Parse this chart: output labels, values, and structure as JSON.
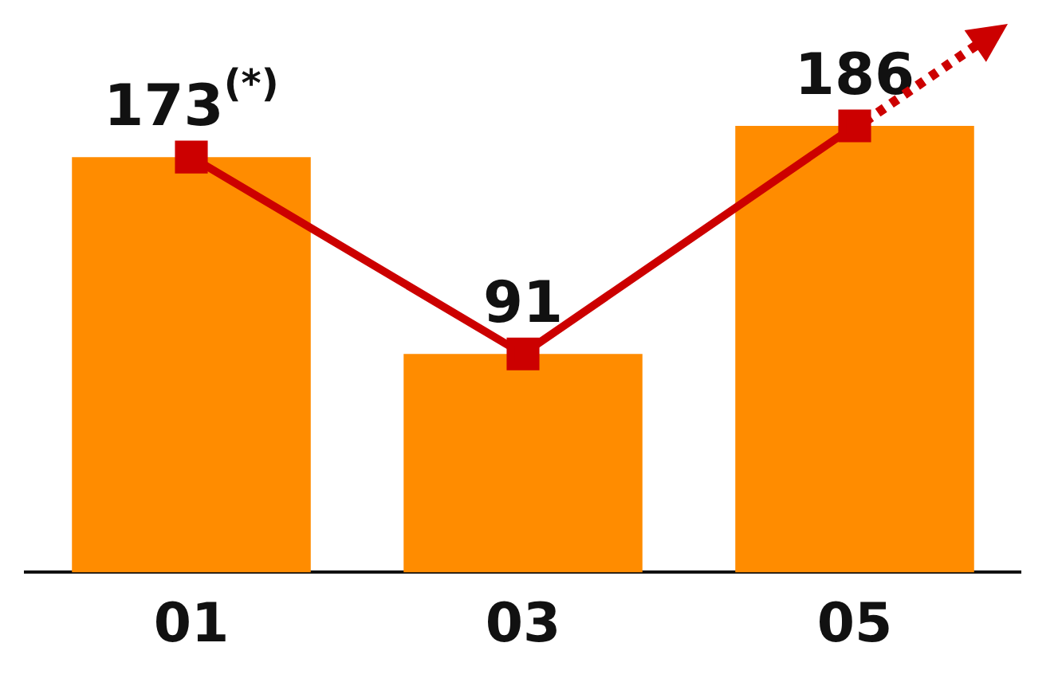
{
  "chart_data": {
    "type": "bar",
    "categories": [
      "01",
      "03",
      "05"
    ],
    "series": [
      {
        "color": "#ff8c00",
        "values": [
          173,
          91,
          186
        ],
        "value_labels": [
          "173$^{(*)}$",
          "91",
          "186"
        ]
      },
      {
        "type": "line",
        "color": "#cc0000",
        "values": [
          173,
          91,
          186
        ],
        "marker": "square",
        "line_style": "solid"
      }
    ],
    "legend": false,
    "grid": false,
    "tick_labels": "x"
  }
}
